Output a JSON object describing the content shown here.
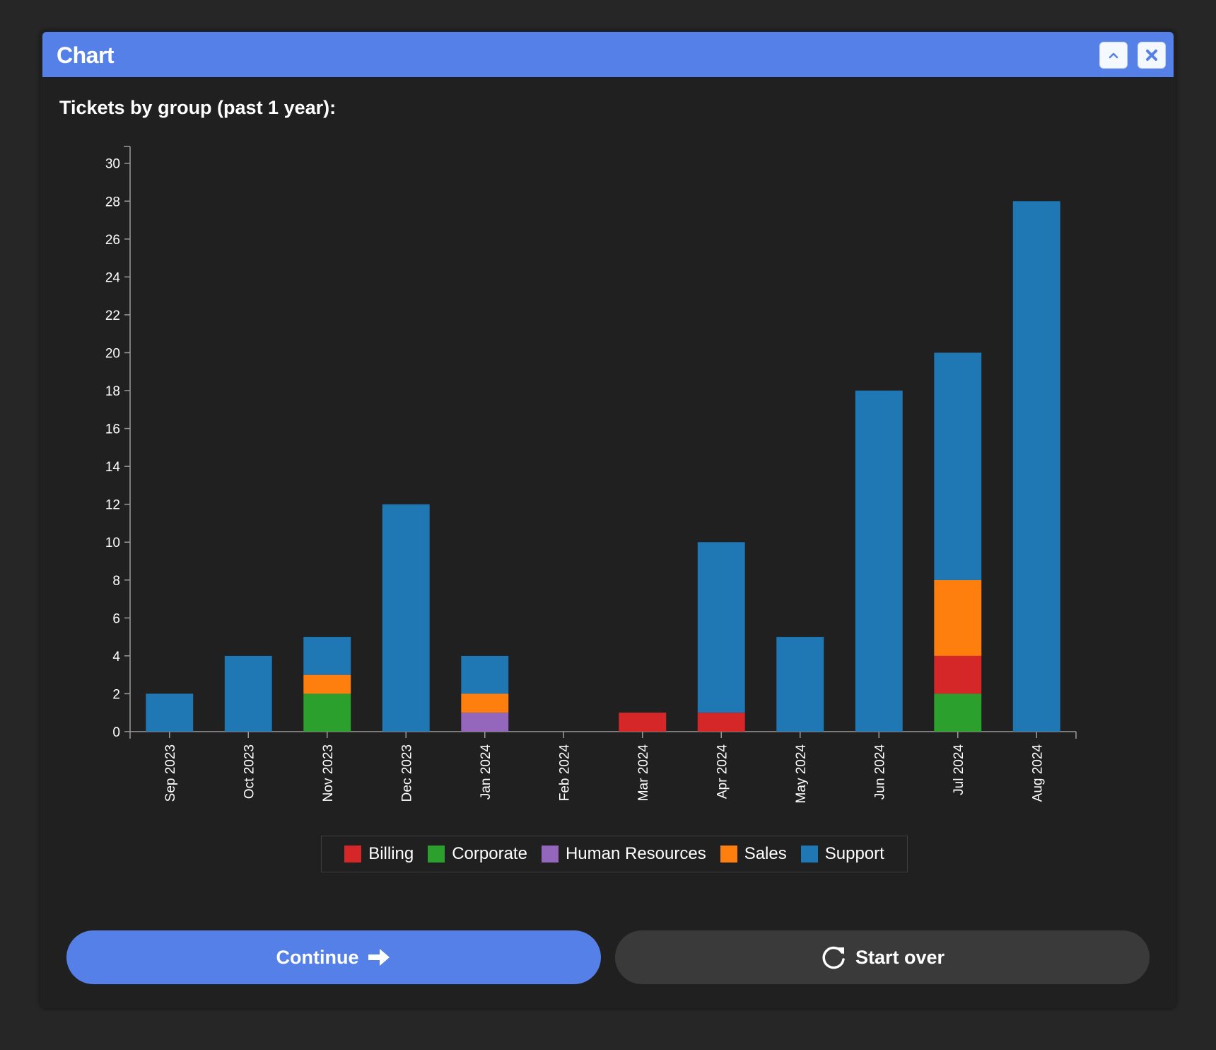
{
  "window": {
    "title": "Chart",
    "collapse_icon": "chevron-up-icon",
    "close_icon": "close-icon"
  },
  "subtitle": "Tickets by group (past 1 year):",
  "colors": {
    "accent": "#5580e8",
    "Billing": "#d62728",
    "Corporate": "#2ca02c",
    "Human Resources": "#9467bd",
    "Sales": "#ff7f0e",
    "Support": "#1f77b4"
  },
  "chart_data": {
    "type": "bar",
    "stacked": true,
    "categories": [
      "Sep 2023",
      "Oct 2023",
      "Nov 2023",
      "Dec 2023",
      "Jan 2024",
      "Feb 2024",
      "Mar 2024",
      "Apr 2024",
      "May 2024",
      "Jun 2024",
      "Jul 2024",
      "Aug 2024"
    ],
    "series": [
      {
        "name": "Billing",
        "values": [
          0,
          0,
          0,
          0,
          0,
          0,
          1,
          1,
          0,
          0,
          2,
          0
        ]
      },
      {
        "name": "Corporate",
        "values": [
          0,
          0,
          2,
          0,
          0,
          0,
          0,
          0,
          0,
          0,
          2,
          0
        ]
      },
      {
        "name": "Human Resources",
        "values": [
          0,
          0,
          0,
          0,
          1,
          0,
          0,
          0,
          0,
          0,
          0,
          0
        ]
      },
      {
        "name": "Sales",
        "values": [
          0,
          0,
          1,
          0,
          1,
          0,
          0,
          0,
          0,
          0,
          4,
          0
        ]
      },
      {
        "name": "Support",
        "values": [
          2,
          4,
          2,
          12,
          2,
          0,
          0,
          9,
          5,
          18,
          12,
          28
        ]
      }
    ],
    "stack_order": [
      "Corporate",
      "Human Resources",
      "Billing",
      "Sales",
      "Support"
    ],
    "ylim": [
      0,
      30
    ],
    "yticks": [
      0,
      2,
      4,
      6,
      8,
      10,
      12,
      14,
      16,
      18,
      20,
      22,
      24,
      26,
      28,
      30
    ],
    "xlabel": "",
    "ylabel": "",
    "grid": false,
    "legend_position": "bottom-center"
  },
  "legend": [
    "Billing",
    "Corporate",
    "Human Resources",
    "Sales",
    "Support"
  ],
  "buttons": {
    "continue_label": "Continue",
    "continue_icon": "arrow-right-icon",
    "startover_label": "Start over",
    "startover_icon": "refresh-icon"
  }
}
